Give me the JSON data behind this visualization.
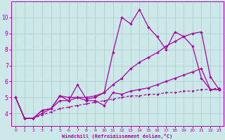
{
  "x": [
    0,
    1,
    2,
    3,
    4,
    5,
    6,
    7,
    8,
    9,
    10,
    11,
    12,
    13,
    14,
    15,
    16,
    17,
    18,
    19,
    20,
    21,
    22,
    23
  ],
  "line1": [
    5.0,
    3.7,
    3.7,
    4.2,
    4.3,
    5.1,
    4.8,
    5.8,
    4.9,
    5.0,
    5.3,
    7.8,
    10.0,
    9.6,
    10.5,
    9.4,
    8.8,
    8.0,
    9.1,
    8.8,
    8.2,
    6.2,
    5.5,
    5.5
  ],
  "line2": [
    5.0,
    3.7,
    3.7,
    4.2,
    4.3,
    5.1,
    5.0,
    5.0,
    4.8,
    4.8,
    4.5,
    5.3,
    5.2,
    5.4,
    5.5,
    5.6,
    5.8,
    6.0,
    6.2,
    6.4,
    6.6,
    6.8,
    5.5,
    5.5
  ],
  "line3": [
    5.0,
    3.7,
    3.7,
    4.0,
    4.3,
    4.8,
    4.8,
    5.0,
    5.0,
    5.1,
    5.3,
    5.8,
    6.2,
    6.8,
    7.2,
    7.5,
    7.8,
    8.2,
    8.5,
    8.8,
    9.0,
    9.1,
    6.3,
    5.5
  ],
  "line4": [
    5.0,
    3.7,
    3.7,
    3.9,
    4.1,
    4.3,
    4.4,
    4.5,
    4.6,
    4.7,
    4.8,
    4.9,
    5.0,
    5.1,
    5.1,
    5.2,
    5.2,
    5.3,
    5.3,
    5.4,
    5.4,
    5.5,
    5.5,
    5.6
  ],
  "line_color": "#aa00aa",
  "bg_color": "#cce8e8",
  "grid_color": "#aacccc",
  "xlabel": "Windchill (Refroidissement éolien,°C)",
  "ylim": [
    3.2,
    11.0
  ],
  "xlim_min": -0.5,
  "xlim_max": 23.5,
  "yticks": [
    4,
    5,
    6,
    7,
    8,
    9,
    10
  ],
  "xticks": [
    0,
    1,
    2,
    3,
    4,
    5,
    6,
    7,
    8,
    9,
    10,
    11,
    12,
    13,
    14,
    15,
    16,
    17,
    18,
    19,
    20,
    21,
    22,
    23
  ]
}
